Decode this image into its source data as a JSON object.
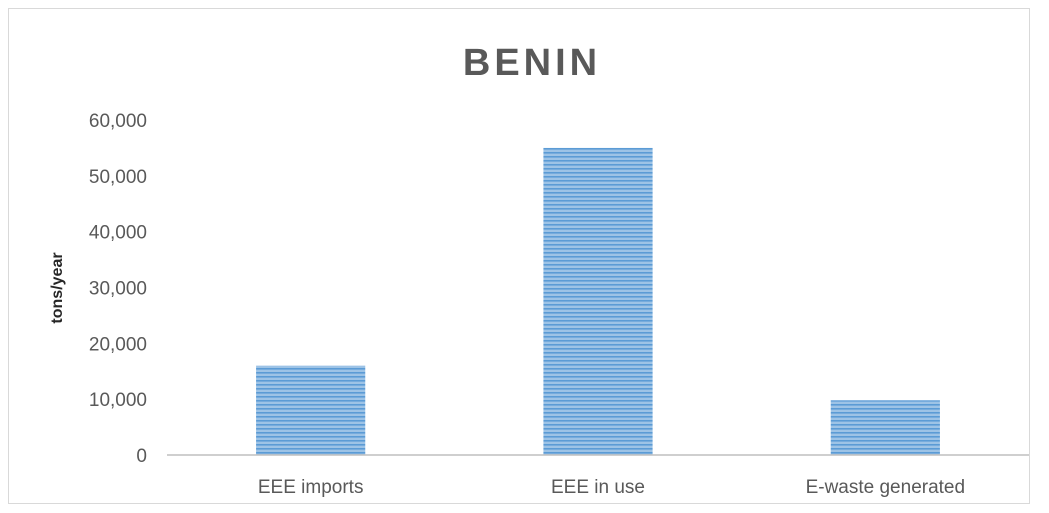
{
  "chart_data": {
    "type": "bar",
    "title": "BENIN",
    "xlabel": "",
    "ylabel": "tons/year",
    "categories": [
      "EEE imports",
      "EEE in use",
      "E-waste generated"
    ],
    "values": [
      16000,
      55000,
      9800
    ],
    "ylim": [
      0,
      60000
    ],
    "yticks": [
      "0",
      "10,000",
      "20,000",
      "30,000",
      "40,000",
      "50,000",
      "60,000"
    ],
    "grid": false,
    "legend": "none",
    "bar_color": "#5b9bd5"
  }
}
